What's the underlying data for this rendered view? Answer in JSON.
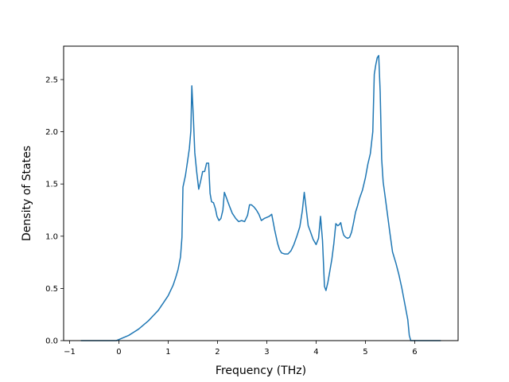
{
  "chart_data": {
    "type": "line",
    "title": "",
    "xlabel": "Frequency (THz)",
    "ylabel": "Density of States",
    "xlim": [
      -1.12,
      6.88
    ],
    "ylim": [
      0.0,
      2.82
    ],
    "xticks": [
      -1,
      0,
      1,
      2,
      3,
      4,
      5,
      6
    ],
    "xtick_labels": [
      "−1",
      "0",
      "1",
      "2",
      "3",
      "4",
      "5",
      "6"
    ],
    "yticks": [
      0.0,
      0.5,
      1.0,
      1.5,
      2.0,
      2.5
    ],
    "ytick_labels": [
      "0.0",
      "0.5",
      "1.0",
      "1.5",
      "2.0",
      "2.5"
    ],
    "grid": false,
    "legend": "none",
    "colors": {
      "line": "#1f77b4"
    },
    "series": [
      {
        "x": [
          -0.77,
          -0.5,
          -0.2,
          -0.05,
          0.0,
          0.1,
          0.2,
          0.3,
          0.4,
          0.5,
          0.6,
          0.7,
          0.8,
          0.9,
          1.0,
          1.1,
          1.15,
          1.2,
          1.25,
          1.28,
          1.3,
          1.35,
          1.4,
          1.43,
          1.46,
          1.48,
          1.51,
          1.54,
          1.58,
          1.62,
          1.66,
          1.7,
          1.74,
          1.78,
          1.82,
          1.85,
          1.88,
          1.92,
          1.96,
          1.99,
          2.03,
          2.07,
          2.11,
          2.14,
          2.18,
          2.21,
          2.25,
          2.3,
          2.37,
          2.43,
          2.49,
          2.55,
          2.61,
          2.65,
          2.69,
          2.74,
          2.79,
          2.84,
          2.89,
          2.95,
          3.0,
          3.05,
          3.1,
          3.16,
          3.22,
          3.26,
          3.3,
          3.36,
          3.43,
          3.49,
          3.55,
          3.61,
          3.67,
          3.72,
          3.76,
          3.8,
          3.84,
          3.88,
          3.94,
          4.0,
          4.05,
          4.09,
          4.13,
          4.17,
          4.2,
          4.24,
          4.28,
          4.32,
          4.36,
          4.4,
          4.44,
          4.47,
          4.5,
          4.53,
          4.56,
          4.6,
          4.64,
          4.68,
          4.72,
          4.76,
          4.8,
          4.84,
          4.88,
          4.94,
          5.0,
          5.05,
          5.1,
          5.15,
          5.18,
          5.21,
          5.24,
          5.27,
          5.3,
          5.33,
          5.36,
          5.4,
          5.45,
          5.5,
          5.55,
          5.62,
          5.68,
          5.74,
          5.8,
          5.86,
          5.89,
          5.92,
          6.0,
          6.2,
          6.4,
          6.53
        ],
        "y": [
          0.0,
          0.0,
          0.0,
          0.0,
          0.01,
          0.03,
          0.05,
          0.08,
          0.11,
          0.15,
          0.19,
          0.24,
          0.29,
          0.36,
          0.43,
          0.53,
          0.6,
          0.68,
          0.8,
          0.99,
          1.47,
          1.58,
          1.74,
          1.84,
          2.01,
          2.44,
          2.15,
          1.8,
          1.61,
          1.45,
          1.53,
          1.62,
          1.62,
          1.7,
          1.7,
          1.41,
          1.33,
          1.32,
          1.26,
          1.19,
          1.15,
          1.17,
          1.25,
          1.42,
          1.37,
          1.33,
          1.28,
          1.22,
          1.17,
          1.14,
          1.15,
          1.14,
          1.2,
          1.3,
          1.3,
          1.28,
          1.25,
          1.21,
          1.15,
          1.17,
          1.18,
          1.19,
          1.21,
          1.06,
          0.93,
          0.87,
          0.84,
          0.83,
          0.83,
          0.86,
          0.92,
          1.0,
          1.09,
          1.24,
          1.42,
          1.26,
          1.1,
          1.05,
          0.97,
          0.92,
          0.98,
          1.19,
          0.96,
          0.52,
          0.48,
          0.56,
          0.67,
          0.78,
          0.93,
          1.12,
          1.1,
          1.11,
          1.13,
          1.06,
          1.01,
          0.99,
          0.98,
          0.99,
          1.04,
          1.13,
          1.23,
          1.29,
          1.36,
          1.44,
          1.56,
          1.69,
          1.79,
          2.0,
          2.55,
          2.64,
          2.71,
          2.73,
          2.38,
          1.74,
          1.52,
          1.38,
          1.2,
          1.02,
          0.85,
          0.74,
          0.63,
          0.5,
          0.35,
          0.2,
          0.05,
          0.0,
          0.0,
          0.0,
          0.0,
          0.0
        ]
      }
    ]
  }
}
